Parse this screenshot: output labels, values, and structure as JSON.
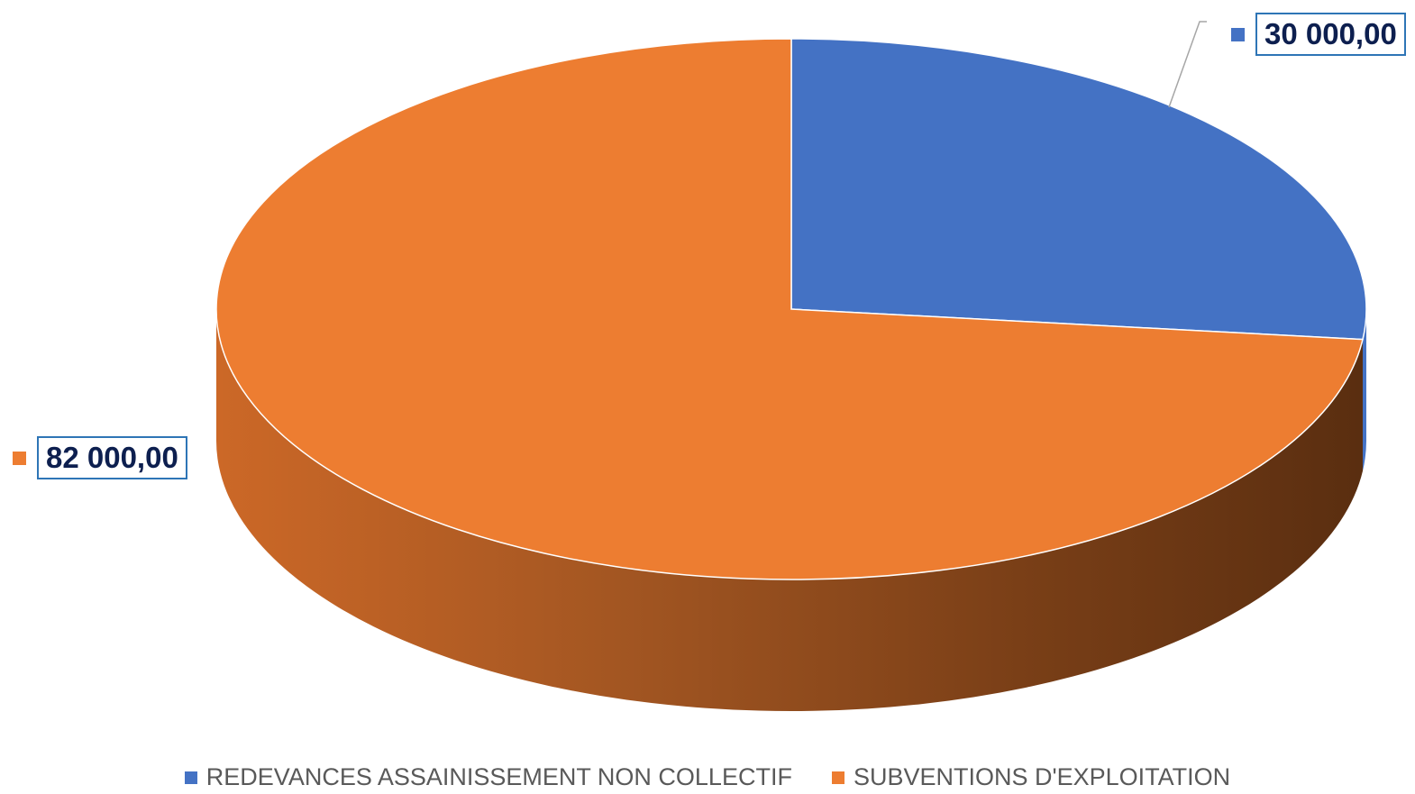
{
  "chart_data": {
    "type": "pie",
    "title": "",
    "categories": [
      "REDEVANCES ASSAINISSEMENT NON COLLECTIF",
      "SUBVENTIONS D'EXPLOITATION"
    ],
    "values": [
      30000,
      82000
    ],
    "data_labels": [
      "30 000,00",
      "82 000,00"
    ],
    "colors": [
      "#4472c4",
      "#ed7d31"
    ],
    "style": "3d",
    "legend_position": "bottom"
  }
}
